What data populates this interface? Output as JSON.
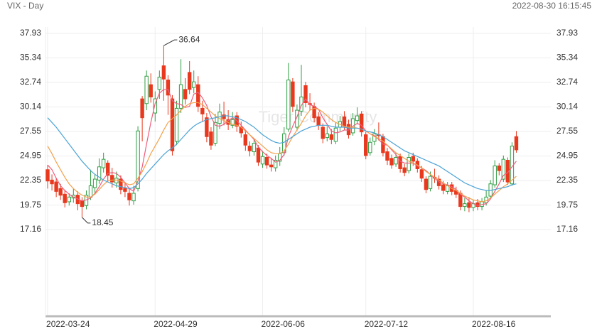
{
  "chart_data": {
    "type": "candlestick",
    "title": "VIX - Day",
    "timestamp": "2022-08-30 16:15:45",
    "watermark": "Tiger Community",
    "categories": [
      "2022-03-24",
      null,
      null,
      null,
      null,
      null,
      null,
      null,
      null,
      null,
      null,
      null,
      null,
      null,
      null,
      null,
      null,
      null,
      null,
      null,
      null,
      null,
      null,
      null,
      null,
      "2022-04-29",
      null,
      null,
      null,
      null,
      null,
      null,
      null,
      null,
      null,
      null,
      null,
      null,
      null,
      null,
      null,
      null,
      null,
      null,
      null,
      null,
      null,
      null,
      null,
      null,
      "2022-06-06",
      null,
      null,
      null,
      null,
      null,
      null,
      null,
      null,
      null,
      null,
      null,
      null,
      null,
      null,
      null,
      null,
      null,
      null,
      null,
      null,
      null,
      null,
      null,
      "2022-07-12",
      null,
      null,
      null,
      null,
      null,
      null,
      null,
      null,
      null,
      null,
      null,
      null,
      null,
      null,
      null,
      null,
      null,
      null,
      null,
      null,
      null,
      null,
      null,
      null,
      "2022-08-16",
      null,
      null,
      null,
      null,
      null,
      null,
      null,
      null,
      null,
      null
    ],
    "open": [
      23.5,
      22.4,
      22.2,
      21.5,
      20.9,
      20.1,
      20.5,
      20.8,
      20.2,
      19.7,
      20.6,
      21.6,
      22.4,
      23.7,
      24.2,
      22.9,
      22.1,
      22.5,
      21.5,
      21.0,
      20.2,
      21.5,
      31.0,
      30.5,
      32.5,
      29.5,
      32.0,
      34.5,
      33.0,
      31.0,
      26.5,
      30.0,
      32.0,
      33.8,
      32.2,
      32.5,
      30.0,
      29.0,
      27.5,
      26.3,
      28.4,
      29.3,
      28.8,
      28.2,
      29.2,
      28.0,
      27.2,
      26.0,
      25.4,
      25.8,
      24.1,
      24.8,
      24.0,
      23.7,
      24.4,
      25.3,
      27.8,
      32.8,
      28.0,
      29.7,
      32.4,
      30.5,
      30.2,
      29.1,
      28.0,
      26.9,
      27.2,
      26.5,
      28.0,
      29.1,
      28.3,
      27.4,
      28.7,
      29.4,
      27.2,
      25.3,
      26.5,
      27.2,
      27.0,
      25.4,
      24.7,
      24.1,
      24.9,
      23.7,
      23.4,
      24.9,
      24.4,
      23.5,
      22.5,
      21.5,
      22.7,
      22.5,
      21.9,
      21.2,
      21.9,
      21.3,
      21.0,
      19.6,
      20.0,
      19.5,
      20.0,
      19.6,
      20.0,
      20.7,
      21.9,
      23.9,
      22.5,
      24.5,
      22.0,
      27.0
    ],
    "high": [
      24.0,
      23.0,
      22.6,
      22.0,
      21.3,
      21.0,
      21.5,
      21.2,
      20.6,
      21.3,
      23.5,
      23.0,
      24.7,
      25.3,
      24.5,
      23.7,
      23.3,
      22.9,
      22.2,
      21.6,
      21.8,
      28.1,
      31.3,
      34.0,
      33.7,
      31.8,
      34.0,
      36.64,
      33.5,
      31.4,
      30.8,
      35.2,
      33.2,
      35.0,
      34.0,
      33.4,
      30.8,
      29.5,
      28.0,
      29.4,
      30.5,
      30.7,
      29.8,
      29.6,
      29.6,
      28.6,
      27.6,
      26.5,
      26.8,
      26.1,
      25.5,
      25.2,
      24.7,
      25.0,
      25.9,
      28.0,
      34.8,
      33.2,
      30.4,
      34.6,
      32.8,
      31.6,
      30.6,
      29.6,
      28.4,
      28.1,
      27.8,
      28.5,
      29.2,
      29.7,
      28.8,
      29.5,
      30.1,
      29.7,
      27.5,
      26.9,
      27.8,
      28.5,
      27.3,
      25.8,
      25.1,
      25.3,
      25.2,
      24.1,
      25.2,
      25.3,
      24.7,
      23.9,
      22.8,
      23.3,
      23.6,
      22.9,
      22.3,
      22.2,
      22.2,
      21.7,
      21.3,
      20.5,
      20.6,
      20.3,
      20.4,
      20.5,
      21.3,
      22.4,
      24.5,
      24.2,
      25.0,
      24.8,
      26.4,
      27.6
    ],
    "low": [
      21.5,
      21.3,
      20.6,
      20.3,
      19.5,
      19.7,
      20.0,
      19.2,
      18.45,
      19.3,
      20.3,
      21.0,
      22.0,
      23.2,
      22.3,
      21.6,
      21.6,
      20.9,
      20.6,
      19.7,
      19.8,
      21.2,
      26.5,
      29.8,
      30.6,
      28.6,
      31.0,
      30.8,
      29.3,
      25.0,
      26.1,
      29.5,
      30.4,
      31.5,
      31.6,
      29.6,
      28.6,
      26.4,
      25.6,
      26.0,
      27.8,
      28.2,
      27.7,
      27.9,
      27.5,
      26.9,
      25.5,
      24.9,
      25.0,
      23.9,
      23.7,
      23.6,
      23.3,
      23.3,
      23.9,
      25.0,
      27.5,
      29.6,
      27.6,
      29.2,
      30.1,
      29.8,
      28.5,
      27.7,
      26.3,
      26.5,
      26.2,
      26.2,
      27.6,
      27.7,
      26.8,
      27.1,
      28.3,
      27.0,
      24.6,
      25.0,
      26.1,
      26.6,
      24.9,
      24.0,
      23.6,
      23.8,
      23.2,
      22.8,
      23.1,
      23.9,
      23.2,
      22.2,
      21.0,
      21.2,
      22.1,
      21.4,
      20.9,
      20.9,
      20.8,
      20.5,
      19.2,
      19.1,
      19.0,
      19.1,
      19.2,
      19.2,
      19.7,
      20.4,
      21.6,
      22.9,
      22.2,
      21.9,
      21.8,
      25.3
    ],
    "close": [
      22.3,
      22.0,
      21.2,
      20.8,
      20.0,
      20.6,
      20.8,
      19.9,
      19.6,
      20.8,
      21.8,
      22.5,
      23.8,
      24.6,
      22.9,
      22.2,
      22.6,
      21.4,
      21.2,
      20.3,
      21.0,
      27.6,
      29.0,
      33.4,
      31.2,
      31.0,
      33.3,
      33.1,
      31.4,
      25.5,
      30.0,
      32.5,
      31.0,
      32.0,
      32.8,
      30.2,
      29.4,
      27.0,
      26.1,
      28.5,
      29.6,
      28.9,
      28.3,
      28.8,
      28.1,
      27.4,
      26.1,
      25.5,
      26.3,
      24.3,
      24.9,
      24.0,
      23.8,
      24.5,
      25.2,
      27.3,
      33.0,
      30.2,
      29.8,
      31.2,
      30.6,
      30.4,
      29.0,
      28.2,
      26.8,
      27.3,
      26.7,
      27.9,
      28.6,
      28.1,
      27.2,
      28.9,
      29.2,
      27.5,
      25.0,
      26.4,
      27.3,
      27.1,
      25.3,
      24.5,
      24.0,
      24.8,
      23.6,
      23.2,
      24.8,
      24.4,
      23.6,
      22.6,
      21.4,
      22.8,
      22.6,
      21.8,
      21.3,
      21.8,
      21.2,
      20.9,
      19.6,
      19.9,
      19.5,
      19.9,
      19.6,
      20.1,
      20.6,
      22.0,
      23.9,
      23.4,
      24.6,
      22.2,
      26.0,
      25.6
    ],
    "up_color": "#2f9e44",
    "down_color": "#e8391f",
    "series": [
      {
        "color": "#ef5d7d",
        "values": [
          24.0,
          23.5,
          22.6,
          21.8,
          21.3,
          20.9,
          20.6,
          20.4,
          20.2,
          20.3,
          20.5,
          21.0,
          21.7,
          22.5,
          23.1,
          23.2,
          23.1,
          22.7,
          22.1,
          21.5,
          21.2,
          22.3,
          23.8,
          26.2,
          28.5,
          30.5,
          31.6,
          32.0,
          32.0,
          30.8,
          30.5,
          30.4,
          30.1,
          30.2,
          31.5,
          31.7,
          31.1,
          30.3,
          29.1,
          28.2,
          28.1,
          28.3,
          28.7,
          29.0,
          28.7,
          28.2,
          27.7,
          27.2,
          26.7,
          25.9,
          25.4,
          25.0,
          24.7,
          24.3,
          24.5,
          25.1,
          27.0,
          28.1,
          29.1,
          30.3,
          31.0,
          30.4,
          30.2,
          29.9,
          29.0,
          28.3,
          27.6,
          27.4,
          27.5,
          27.7,
          27.7,
          28.1,
          28.4,
          28.2,
          27.6,
          27.3,
          27.1,
          26.7,
          26.2,
          26.1,
          25.6,
          25.1,
          24.4,
          24.2,
          24.2,
          24.2,
          23.9,
          23.7,
          23.4,
          23.0,
          22.6,
          22.2,
          22.0,
          21.9,
          21.7,
          21.4,
          20.9,
          20.6,
          20.2,
          19.9,
          19.7,
          19.8,
          19.9,
          20.4,
          21.2,
          22.0,
          22.9,
          23.2,
          23.8,
          24.4
        ]
      },
      {
        "color": "#f4a04a",
        "values": [
          26.0,
          25.2,
          24.3,
          23.5,
          22.7,
          22.0,
          21.5,
          21.1,
          20.8,
          20.6,
          20.6,
          20.9,
          21.4,
          21.9,
          22.3,
          22.4,
          22.4,
          22.3,
          22.1,
          21.9,
          22.0,
          22.6,
          23.3,
          24.2,
          25.2,
          26.0,
          26.8,
          27.7,
          28.5,
          28.9,
          29.3,
          29.8,
          30.2,
          30.5,
          30.6,
          30.6,
          30.4,
          30.0,
          29.6,
          29.2,
          28.9,
          28.7,
          28.5,
          28.3,
          28.2,
          28.0,
          27.6,
          27.2,
          26.8,
          26.4,
          26.0,
          25.6,
          25.3,
          25.2,
          25.2,
          25.5,
          26.2,
          27.0,
          27.7,
          28.4,
          29.2,
          29.8,
          30.0,
          29.9,
          29.6,
          29.2,
          28.8,
          28.5,
          28.3,
          28.1,
          28.0,
          28.0,
          27.9,
          27.8,
          27.6,
          27.3,
          27.0,
          26.8,
          26.5,
          26.1,
          25.7,
          25.3,
          25.0,
          24.7,
          24.4,
          24.2,
          24.0,
          23.7,
          23.3,
          23.0,
          22.7,
          22.4,
          22.1,
          21.8,
          21.5,
          21.3,
          21.0,
          20.7,
          20.5,
          20.3,
          20.2,
          20.1,
          20.2,
          20.5,
          20.9,
          21.3,
          21.7,
          22.0,
          22.4,
          22.8
        ]
      },
      {
        "color": "#4ba3d6",
        "values": [
          29.0,
          28.5,
          28.0,
          27.4,
          26.8,
          26.2,
          25.6,
          25.0,
          24.4,
          23.9,
          23.4,
          23.0,
          22.7,
          22.4,
          22.2,
          22.0,
          21.8,
          21.7,
          21.6,
          21.5,
          21.6,
          22.0,
          22.5,
          23.1,
          23.6,
          24.1,
          24.6,
          25.1,
          25.5,
          25.8,
          26.2,
          26.7,
          27.2,
          27.7,
          28.1,
          28.4,
          28.6,
          28.8,
          28.9,
          29.0,
          29.1,
          29.2,
          29.2,
          29.1,
          29.0,
          28.8,
          28.6,
          28.3,
          28.0,
          27.6,
          27.2,
          26.9,
          26.6,
          26.4,
          26.3,
          26.4,
          26.7,
          27.0,
          27.3,
          27.6,
          27.8,
          28.0,
          28.1,
          28.2,
          28.2,
          28.2,
          28.1,
          28.0,
          28.0,
          28.0,
          27.9,
          27.9,
          27.9,
          27.8,
          27.6,
          27.5,
          27.4,
          27.2,
          27.0,
          26.7,
          26.4,
          26.1,
          25.8,
          25.5,
          25.3,
          25.1,
          24.9,
          24.7,
          24.5,
          24.3,
          24.1,
          23.9,
          23.6,
          23.3,
          23.0,
          22.7,
          22.4,
          22.1,
          21.9,
          21.7,
          21.5,
          21.4,
          21.3,
          21.3,
          21.4,
          21.5,
          21.6,
          21.7,
          21.9,
          22.0
        ]
      }
    ],
    "ylim": [
      7.98,
      38.61
    ],
    "yticks": [
      37.93,
      35.34,
      32.74,
      30.14,
      27.55,
      24.95,
      22.35,
      19.75,
      17.16
    ],
    "grid": true
  }
}
